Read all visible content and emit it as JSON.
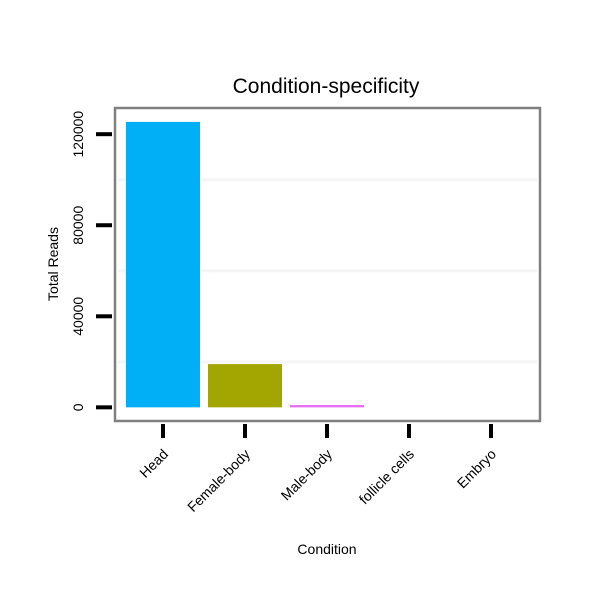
{
  "chart_data": {
    "type": "bar",
    "title": "Condition-specificity",
    "xlabel": "Condition",
    "ylabel": "Total Reads",
    "categories": [
      "Head",
      "Female-body",
      "Male-body",
      "follicle cells",
      "Embryo"
    ],
    "values": [
      125400,
      19000,
      1000,
      0,
      0
    ],
    "colors": [
      "#00aff5",
      "#a3a500",
      "#e76bf3",
      "#00bf7d",
      "#f8766d"
    ],
    "yticks": [
      0,
      40000,
      80000,
      120000
    ],
    "ytick_labels": [
      "0",
      "40000",
      "80000",
      "120000"
    ],
    "minor_grid": [
      20000,
      60000,
      100000
    ],
    "ylim": [
      -6000,
      131500
    ],
    "grid": true,
    "legend": "none"
  }
}
